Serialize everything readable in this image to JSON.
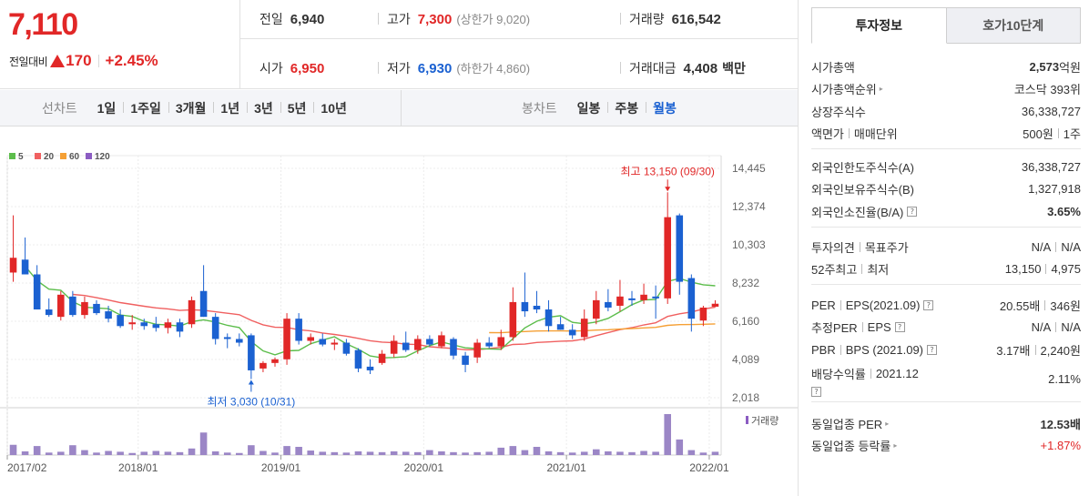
{
  "quote": {
    "price": "7,110",
    "change_label": "전일대비",
    "change_amount": "170",
    "change_percent": "+2.45%"
  },
  "stats": {
    "prev_close": {
      "label": "전일",
      "value": "6,940"
    },
    "high": {
      "label": "고가",
      "value": "7,300",
      "sub_label": "상한가",
      "sub_value": "9,020"
    },
    "volume": {
      "label": "거래량",
      "value": "616,542"
    },
    "open": {
      "label": "시가",
      "value": "6,950"
    },
    "low": {
      "label": "저가",
      "value": "6,930",
      "sub_label": "하한가",
      "sub_value": "4,860"
    },
    "trade_value": {
      "label": "거래대금",
      "value": "4,408",
      "unit": "백만"
    }
  },
  "toolbar": {
    "line_title": "선차트",
    "line_items": [
      "1일",
      "1주일",
      "3개월",
      "1년",
      "3년",
      "5년",
      "10년"
    ],
    "candle_title": "봉차트",
    "candle_items": [
      "일봉",
      "주봉",
      "월봉"
    ],
    "candle_active": "월봉"
  },
  "colors": {
    "up": "#e12727",
    "down": "#1b61d1",
    "ma5": "#5cbd4b",
    "ma20": "#f06060",
    "ma60": "#f5a035",
    "ma120": "#8b5cc2",
    "volume": "#9b86c6"
  },
  "chart_data": {
    "type": "candlestick",
    "legend": [
      "5",
      "20",
      "60",
      "120"
    ],
    "y_ticks": [
      "14,445",
      "12,374",
      "10,303",
      "8,232",
      "6,160",
      "4,089",
      "2,018"
    ],
    "y_tick_values": [
      14445,
      12374,
      10303,
      8232,
      6160,
      4089,
      2018
    ],
    "ylim": [
      2018,
      14445
    ],
    "x_ticks": [
      "2017/02",
      "2018/01",
      "2019/01",
      "2020/01",
      "2021/01",
      "2022/01"
    ],
    "x_tick_index": [
      0,
      11,
      23,
      35,
      47,
      59
    ],
    "max_annotation": "최고 13,150 (09/30)",
    "max_index": 55,
    "max_value": 13150,
    "min_annotation": "최저 3,030 (10/31)",
    "min_index": 20,
    "min_value": 3030,
    "volume_label": "거래량",
    "candles": [
      {
        "o": 8800,
        "h": 11900,
        "l": 8300,
        "c": 9600
      },
      {
        "o": 9500,
        "h": 10700,
        "l": 8800,
        "c": 8700
      },
      {
        "o": 8700,
        "h": 9200,
        "l": 6800,
        "c": 6800
      },
      {
        "o": 6800,
        "h": 7400,
        "l": 6400,
        "c": 6500
      },
      {
        "o": 6400,
        "h": 7800,
        "l": 6200,
        "c": 7600
      },
      {
        "o": 7500,
        "h": 7800,
        "l": 6400,
        "c": 6500
      },
      {
        "o": 6500,
        "h": 7500,
        "l": 6300,
        "c": 7200
      },
      {
        "o": 7100,
        "h": 7300,
        "l": 6500,
        "c": 6600
      },
      {
        "o": 6700,
        "h": 7000,
        "l": 6100,
        "c": 6300
      },
      {
        "o": 6500,
        "h": 6800,
        "l": 5800,
        "c": 5900
      },
      {
        "o": 6000,
        "h": 6500,
        "l": 5700,
        "c": 6100
      },
      {
        "o": 6100,
        "h": 6300,
        "l": 5700,
        "c": 5900
      },
      {
        "o": 6000,
        "h": 6400,
        "l": 5600,
        "c": 5800
      },
      {
        "o": 5800,
        "h": 6300,
        "l": 5500,
        "c": 6100
      },
      {
        "o": 6100,
        "h": 6300,
        "l": 5300,
        "c": 5600
      },
      {
        "o": 6000,
        "h": 7500,
        "l": 5800,
        "c": 7300
      },
      {
        "o": 7800,
        "h": 9200,
        "l": 6400,
        "c": 6400
      },
      {
        "o": 6400,
        "h": 6600,
        "l": 4900,
        "c": 5200
      },
      {
        "o": 5300,
        "h": 5500,
        "l": 4700,
        "c": 5200
      },
      {
        "o": 5200,
        "h": 5500,
        "l": 4800,
        "c": 5000
      },
      {
        "o": 5400,
        "h": 5500,
        "l": 3030,
        "c": 3500
      },
      {
        "o": 3600,
        "h": 4000,
        "l": 3400,
        "c": 3900
      },
      {
        "o": 3900,
        "h": 4200,
        "l": 3700,
        "c": 4100
      },
      {
        "o": 4100,
        "h": 6600,
        "l": 3800,
        "c": 6300
      },
      {
        "o": 6300,
        "h": 6600,
        "l": 4900,
        "c": 5100
      },
      {
        "o": 5100,
        "h": 5500,
        "l": 4900,
        "c": 5300
      },
      {
        "o": 5200,
        "h": 5500,
        "l": 4800,
        "c": 4900
      },
      {
        "o": 4900,
        "h": 5200,
        "l": 4600,
        "c": 5000
      },
      {
        "o": 5000,
        "h": 5200,
        "l": 4300,
        "c": 4400
      },
      {
        "o": 4600,
        "h": 4700,
        "l": 3400,
        "c": 3600
      },
      {
        "o": 3700,
        "h": 4100,
        "l": 3300,
        "c": 3500
      },
      {
        "o": 3900,
        "h": 4600,
        "l": 3800,
        "c": 4400
      },
      {
        "o": 4400,
        "h": 5400,
        "l": 4200,
        "c": 5100
      },
      {
        "o": 5000,
        "h": 5600,
        "l": 4500,
        "c": 4600
      },
      {
        "o": 4600,
        "h": 5400,
        "l": 4400,
        "c": 5200
      },
      {
        "o": 5200,
        "h": 5400,
        "l": 4800,
        "c": 4900
      },
      {
        "o": 4800,
        "h": 5600,
        "l": 4700,
        "c": 5400
      },
      {
        "o": 5200,
        "h": 5300,
        "l": 4100,
        "c": 4300
      },
      {
        "o": 4300,
        "h": 4500,
        "l": 3400,
        "c": 3800
      },
      {
        "o": 4200,
        "h": 5200,
        "l": 3900,
        "c": 5000
      },
      {
        "o": 5000,
        "h": 5300,
        "l": 4700,
        "c": 4800
      },
      {
        "o": 4800,
        "h": 5700,
        "l": 4600,
        "c": 5300
      },
      {
        "o": 5300,
        "h": 8000,
        "l": 5100,
        "c": 7200
      },
      {
        "o": 7200,
        "h": 8800,
        "l": 6400,
        "c": 6700
      },
      {
        "o": 7000,
        "h": 7800,
        "l": 6600,
        "c": 6800
      },
      {
        "o": 6800,
        "h": 7300,
        "l": 5600,
        "c": 5900
      },
      {
        "o": 6000,
        "h": 6400,
        "l": 5700,
        "c": 5700
      },
      {
        "o": 5700,
        "h": 6000,
        "l": 5200,
        "c": 5400
      },
      {
        "o": 5300,
        "h": 6800,
        "l": 5100,
        "c": 6300
      },
      {
        "o": 6300,
        "h": 7800,
        "l": 6000,
        "c": 7300
      },
      {
        "o": 7200,
        "h": 7900,
        "l": 6700,
        "c": 6900
      },
      {
        "o": 7000,
        "h": 8400,
        "l": 6700,
        "c": 7500
      },
      {
        "o": 7400,
        "h": 7800,
        "l": 7000,
        "c": 7300
      },
      {
        "o": 7300,
        "h": 8200,
        "l": 7100,
        "c": 7600
      },
      {
        "o": 7500,
        "h": 8100,
        "l": 6300,
        "c": 7400
      },
      {
        "o": 7400,
        "h": 13150,
        "l": 7100,
        "c": 11800
      },
      {
        "o": 11900,
        "h": 12000,
        "l": 7600,
        "c": 8300
      },
      {
        "o": 8500,
        "h": 8700,
        "l": 5600,
        "c": 6300
      },
      {
        "o": 6200,
        "h": 7000,
        "l": 5900,
        "c": 6900
      },
      {
        "o": 6950,
        "h": 7300,
        "l": 6930,
        "c": 7110
      }
    ],
    "volume_values": [
      25,
      9,
      22,
      6,
      8,
      24,
      12,
      6,
      10,
      8,
      5,
      8,
      10,
      8,
      7,
      16,
      55,
      9,
      6,
      5,
      24,
      10,
      6,
      22,
      20,
      11,
      8,
      7,
      6,
      9,
      8,
      7,
      9,
      8,
      7,
      12,
      9,
      7,
      6,
      7,
      8,
      18,
      22,
      12,
      20,
      9,
      7,
      6,
      8,
      14,
      9,
      8,
      7,
      10,
      8,
      100,
      38,
      12,
      6,
      8
    ]
  },
  "info": {
    "tabs": [
      "투자정보",
      "호가10단계"
    ],
    "sec1": [
      {
        "k": "시가총액",
        "v_num": "2,573",
        "v_unit": "억원"
      },
      {
        "k": "시가총액순위",
        "v": "코스닥 393위"
      },
      {
        "k": "상장주식수",
        "v": "36,338,727"
      },
      {
        "k1": "액면가",
        "k2": "매매단위",
        "v1": "500원",
        "v2": "1주"
      }
    ],
    "sec2": [
      {
        "k": "외국인한도주식수(A)",
        "v": "36,338,727"
      },
      {
        "k": "외국인보유주식수(B)",
        "v": "1,327,918"
      },
      {
        "k": "외국인소진율(B/A)",
        "v": "3.65%"
      }
    ],
    "sec3": [
      {
        "k1": "투자의견",
        "k2": "목표주가",
        "v1": "N/A",
        "v2": "N/A"
      },
      {
        "k1": "52주최고",
        "k2": "최저",
        "v1": "13,150",
        "v2": "4,975"
      }
    ],
    "sec4": [
      {
        "k1": "PER",
        "k2": "EPS(2021.09)",
        "v1": "20.55배",
        "v2": "346원"
      },
      {
        "k1": "추정PER",
        "k2": "EPS",
        "v1": "N/A",
        "v2": "N/A"
      },
      {
        "k1": "PBR",
        "k2": "BPS (2021.09)",
        "v1": "3.17배",
        "v2": "2,240원"
      },
      {
        "k1": "배당수익률",
        "k2": "2021.12",
        "v": "2.11%"
      }
    ],
    "sec5": [
      {
        "k": "동일업종 PER",
        "v": "12.53배"
      },
      {
        "k": "동일업종 등락률",
        "v": "+1.87%"
      }
    ],
    "help_icon": "?"
  }
}
